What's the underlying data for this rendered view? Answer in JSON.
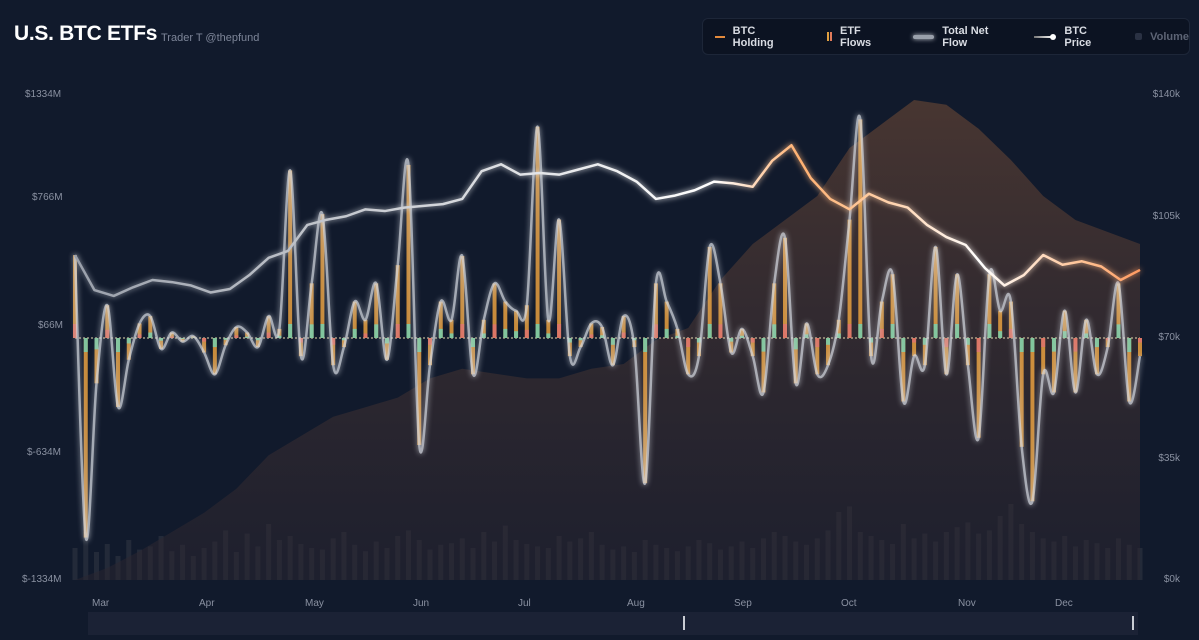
{
  "header": {
    "title": "U.S. BTC ETFs",
    "subtitle": "Trader T @thepfund"
  },
  "legend": [
    {
      "label": "BTC Holding",
      "color": "#e48a3c",
      "active": true
    },
    {
      "label": "ETF Flows",
      "color": "#e0a040",
      "active": true
    },
    {
      "label": "Total Net Flow",
      "color": "#c8ccd4",
      "active": true
    },
    {
      "label": "BTC Price",
      "color": "#ffffff",
      "active": true
    },
    {
      "label": "Volume",
      "color": "#2a3143",
      "active": false
    }
  ],
  "colors": {
    "background": "#111a2c",
    "flow_pos": "#e8a040",
    "flow_neg": "#e07070",
    "flow_alt": "#6fd3b5",
    "holding": "#6b4a33",
    "price_hot": "#ffb070"
  },
  "chart_data": {
    "type": "line",
    "title": "U.S. BTC ETFs",
    "left_axis": {
      "ticks": [
        "$1334M",
        "$766M",
        "$66M",
        "$-634M",
        "$-1334M"
      ],
      "range": [
        -1334,
        1334
      ],
      "unit": "$M"
    },
    "right_axis": {
      "ticks": [
        "$140k",
        "$105k",
        "$70k",
        "$35k",
        "$0k"
      ],
      "range": [
        0,
        140000
      ]
    },
    "months": [
      "Mar",
      "Apr",
      "May",
      "Jun",
      "Jul",
      "Aug",
      "Sep",
      "Oct",
      "Nov",
      "Dec"
    ],
    "daily_flows_musd": [
      455,
      -1100,
      -250,
      180,
      -380,
      -120,
      80,
      120,
      -60,
      30,
      -20,
      10,
      -80,
      -200,
      -40,
      60,
      30,
      -50,
      120,
      50,
      920,
      -100,
      300,
      680,
      -150,
      -50,
      200,
      100,
      300,
      -120,
      400,
      950,
      -590,
      -150,
      200,
      100,
      450,
      -200,
      100,
      300,
      200,
      150,
      180,
      1160,
      100,
      650,
      -100,
      -50,
      80,
      60,
      -150,
      120,
      -50,
      -800,
      300,
      200,
      50,
      -200,
      -100,
      500,
      300,
      -80,
      50,
      -100,
      -300,
      300,
      550,
      -250,
      80,
      -200,
      -150,
      100,
      650,
      1200,
      -100,
      200,
      350,
      -350,
      -100,
      -150,
      500,
      -200,
      350,
      -150,
      -550,
      350,
      150,
      200,
      -600,
      -900,
      -200,
      -300,
      150,
      -300,
      100,
      -200,
      -50,
      300,
      -350,
      -100
    ],
    "btc_price_usd": [
      93800,
      83700,
      82000,
      84500,
      86600,
      86000,
      85000,
      83000,
      84000,
      88000,
      93000,
      95000,
      102500,
      104000,
      105000,
      107000,
      106500,
      107500,
      108000,
      108500,
      110000,
      118000,
      120000,
      117000,
      117500,
      117000,
      118500,
      120000,
      118000,
      115000,
      110000,
      111000,
      112500,
      115000,
      114500,
      113500,
      121000,
      125500,
      116000,
      110000,
      107000,
      111500,
      109000,
      107500,
      102500,
      99000,
      96700,
      90000,
      85000,
      88000,
      93800,
      91000,
      92000,
      90500,
      86600,
      89500
    ],
    "btc_holding_relative": [
      0,
      5,
      12,
      20,
      28,
      38,
      52,
      60,
      68,
      72,
      76,
      84,
      88,
      86,
      84,
      84,
      88,
      90,
      100,
      105,
      125,
      140,
      150,
      160,
      180,
      190,
      200,
      198,
      188,
      175,
      160,
      150,
      145,
      140
    ],
    "volume_relative": [
      40,
      60,
      35,
      45,
      30,
      50,
      38,
      42,
      55,
      36,
      44,
      30,
      40,
      48,
      62,
      35,
      58,
      42,
      70,
      50,
      55,
      45,
      40,
      38,
      52,
      60,
      44,
      36,
      48,
      40,
      55,
      62,
      50,
      38,
      44,
      46,
      52,
      40,
      60,
      48,
      68,
      50,
      45,
      42,
      40,
      55,
      48,
      52,
      60,
      44,
      38,
      42,
      35,
      50,
      44,
      40,
      36,
      42,
      50,
      46,
      38,
      42,
      48,
      40,
      52,
      60,
      55,
      48,
      44,
      52,
      62,
      85,
      92,
      60,
      55,
      50,
      45,
      70,
      52,
      58,
      48,
      60,
      66,
      72,
      58,
      62,
      80,
      95,
      70,
      60,
      52,
      48,
      55,
      42,
      50,
      46,
      40,
      52,
      44,
      40
    ]
  },
  "navigator": {
    "visible_range": [
      "Sep",
      "Dec"
    ]
  }
}
